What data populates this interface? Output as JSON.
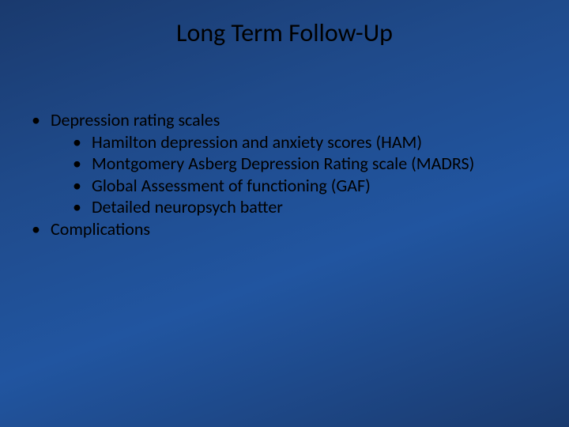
{
  "slide": {
    "title": "Long Term Follow-Up",
    "background_gradient": [
      "#1a3a6e",
      "#1f4a8a",
      "#2155a0",
      "#1a3a6e"
    ],
    "title_color": "#000000",
    "title_fontsize": 32,
    "body_color": "#000000",
    "body_fontsize": 22,
    "bullets": {
      "item1": "Depression rating scales",
      "sub1": "Hamilton depression and anxiety scores (HAM)",
      "sub2": "Montgomery Asberg Depression Rating scale (MADRS)",
      "sub3": "Global Assessment of functioning (GAF)",
      "sub4": "Detailed neuropsych batter",
      "item2": "Complications"
    }
  }
}
